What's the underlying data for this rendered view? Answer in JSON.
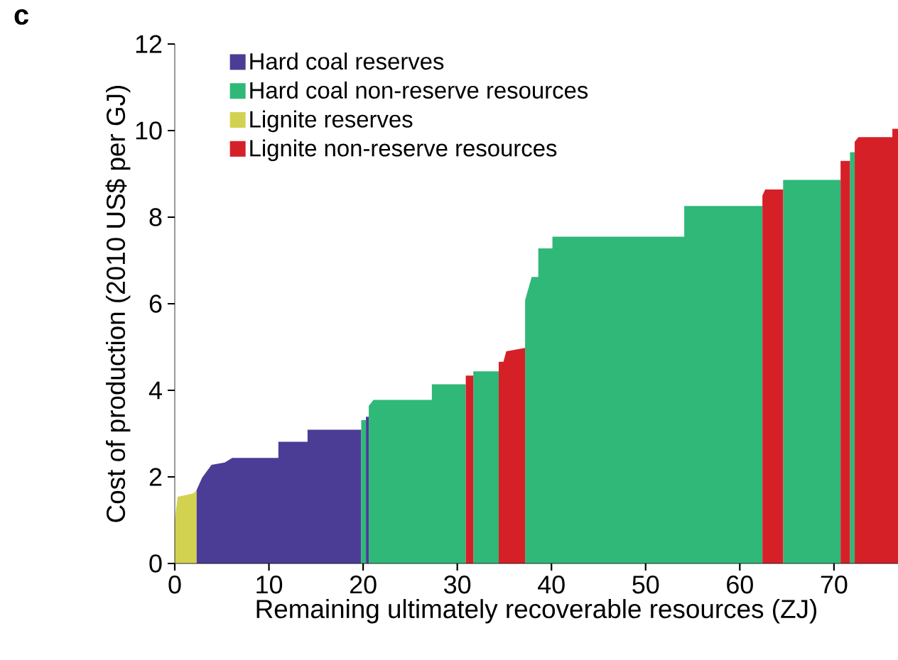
{
  "chart_data": {
    "type": "area",
    "xlabel": "Remaining ultimately recoverable resources (ZJ)",
    "ylabel": "Cost of production (2010 US$ per GJ)",
    "annotations": [
      "c"
    ],
    "xlim": [
      0,
      76.8
    ],
    "xticks": [
      0,
      10,
      20,
      30,
      40,
      50,
      60,
      70
    ],
    "ylim": [
      0,
      12
    ],
    "yticks": [
      0,
      2,
      4,
      6,
      8,
      10,
      12
    ],
    "grid": false,
    "legend": "top left",
    "series": [
      {
        "name": "Hard coal reserves",
        "color": "#4b3c96",
        "x": [
          2.3,
          2.9,
          3.9,
          5.3,
          6.1,
          11.0,
          11.0,
          14.1,
          14.1,
          19.8,
          20.0,
          20.3,
          20.6
        ],
        "values": [
          1.69,
          1.98,
          2.28,
          2.33,
          2.44,
          2.44,
          2.81,
          2.81,
          3.09,
          3.09,
          null,
          3.39,
          3.39
        ]
      },
      {
        "name": "Hard coal non-reserve resources",
        "color": "#30b878",
        "x": [
          19.8,
          20.3,
          20.4,
          20.6,
          21.1,
          27.3,
          27.3,
          30.9,
          31.3,
          31.7,
          34.4,
          35.8,
          37.2,
          37.9,
          38.6,
          38.6,
          40.1,
          40.1,
          54.1,
          54.1,
          62.4,
          63.5,
          64.6,
          70.7,
          71.2,
          71.7,
          72.2
        ],
        "values": [
          3.31,
          3.31,
          null,
          3.64,
          3.78,
          3.78,
          4.14,
          4.14,
          null,
          4.44,
          4.44,
          null,
          6.08,
          6.62,
          6.62,
          7.28,
          7.28,
          7.55,
          7.55,
          8.26,
          8.26,
          null,
          8.86,
          8.86,
          null,
          9.5,
          9.5
        ]
      },
      {
        "name": "Lignite reserves",
        "color": "#d2d250",
        "x": [
          0,
          0.3,
          1.96,
          2.3
        ],
        "values": [
          1.0,
          1.54,
          1.62,
          1.69
        ]
      },
      {
        "name": "Lignite non-reserve resources",
        "color": "#d62028",
        "x": [
          30.9,
          31.7,
          33.0,
          34.4,
          34.9,
          35.2,
          37.2,
          50.0,
          62.4,
          62.7,
          64.6,
          67.0,
          70.7,
          71.7,
          72.0,
          72.2,
          72.6,
          76.2,
          76.2,
          76.8
        ],
        "values": [
          4.34,
          4.34,
          null,
          4.66,
          4.66,
          4.9,
          4.98,
          null,
          8.5,
          8.64,
          8.64,
          null,
          9.3,
          9.3,
          null,
          9.74,
          9.85,
          9.85,
          10.04,
          10.04
        ]
      }
    ]
  }
}
